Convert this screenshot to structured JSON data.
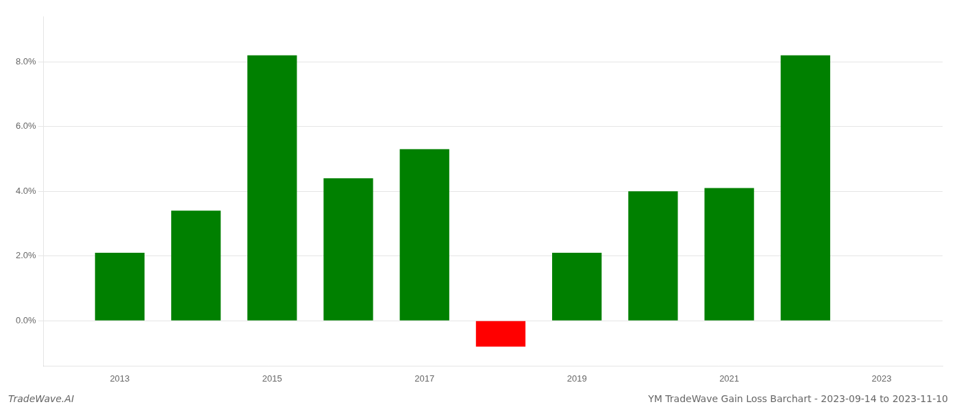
{
  "chart_data": {
    "type": "bar",
    "title": "YM TradeWave Gain Loss Barchart - 2023-09-14 to 2023-11-10",
    "annotations": [
      "TradeWave.AI"
    ],
    "x": [
      2013,
      2014,
      2015,
      2016,
      2017,
      2018,
      2019,
      2020,
      2021,
      2022
    ],
    "values": [
      0.021,
      0.034,
      0.082,
      0.044,
      0.053,
      -0.008,
      0.021,
      0.04,
      0.041,
      0.082
    ],
    "colors": [
      "#008000",
      "#008000",
      "#008000",
      "#008000",
      "#008000",
      "#ff0000",
      "#008000",
      "#008000",
      "#008000",
      "#008000"
    ],
    "xlim": [
      2012.0,
      2023.8
    ],
    "xticks": [
      2013,
      2015,
      2017,
      2019,
      2021,
      2023
    ],
    "ylim": [
      -0.014,
      0.094
    ],
    "yticks": [
      {
        "value": 0.0,
        "label": "0.0%"
      },
      {
        "value": 0.02,
        "label": "2.0%"
      },
      {
        "value": 0.04,
        "label": "4.0%"
      },
      {
        "value": 0.06,
        "label": "6.0%"
      },
      {
        "value": 0.08,
        "label": "8.0%"
      }
    ],
    "grid": "y"
  }
}
